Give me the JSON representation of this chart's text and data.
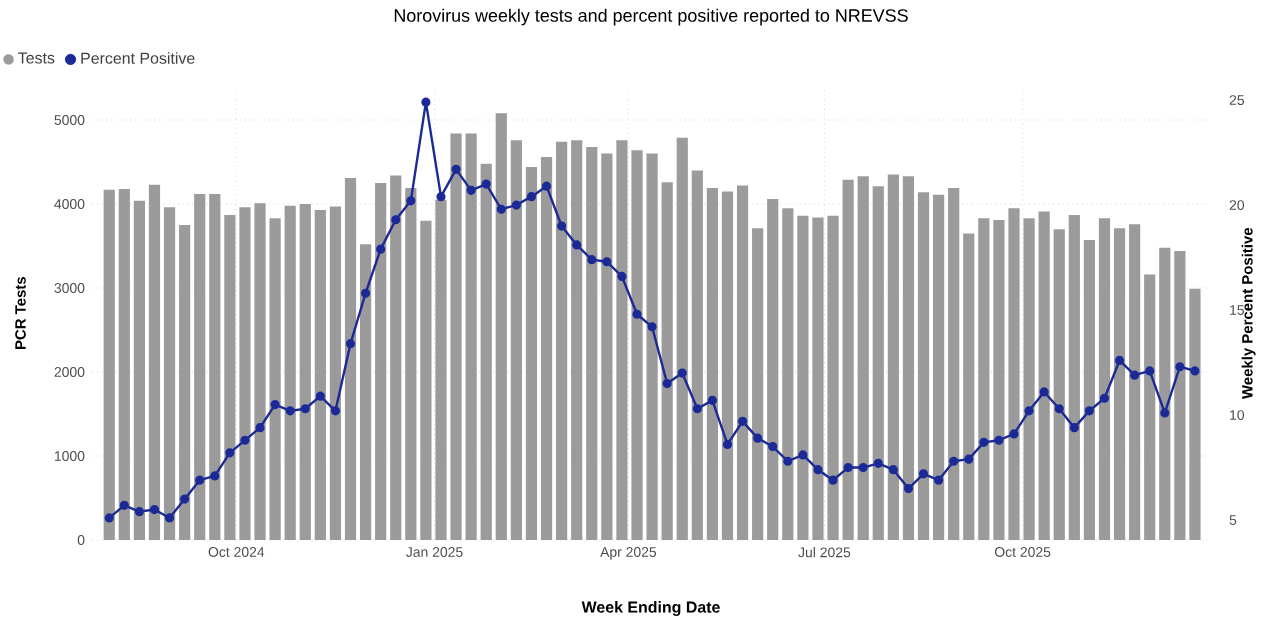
{
  "chart_data": {
    "type": "bar",
    "title": "Norovirus weekly tests and percent positive reported to NREVSS",
    "xlabel": "Week Ending Date",
    "ylabel": "PCR Tests",
    "y2label": "Weekly Percent Positive",
    "x": [
      "2024-08-03",
      "2024-08-10",
      "2024-08-17",
      "2024-08-24",
      "2024-08-31",
      "2024-09-07",
      "2024-09-14",
      "2024-09-21",
      "2024-09-28",
      "2024-10-05",
      "2024-10-12",
      "2024-10-19",
      "2024-10-26",
      "2024-11-02",
      "2024-11-09",
      "2024-11-16",
      "2024-11-23",
      "2024-11-30",
      "2024-12-07",
      "2024-12-14",
      "2024-12-21",
      "2024-12-28",
      "2025-01-04",
      "2025-01-11",
      "2025-01-18",
      "2025-01-25",
      "2025-02-01",
      "2025-02-08",
      "2025-02-15",
      "2025-02-22",
      "2025-03-01",
      "2025-03-08",
      "2025-03-15",
      "2025-03-22",
      "2025-03-29",
      "2025-04-05",
      "2025-04-12",
      "2025-04-19",
      "2025-04-26",
      "2025-05-03",
      "2025-05-10",
      "2025-05-17",
      "2025-05-24",
      "2025-05-31",
      "2025-06-07",
      "2025-06-14",
      "2025-06-21",
      "2025-06-28",
      "2025-07-05",
      "2025-07-12",
      "2025-07-19",
      "2025-07-26",
      "2025-08-02",
      "2025-08-09",
      "2025-08-16",
      "2025-08-23",
      "2025-08-30",
      "2025-09-06",
      "2025-09-13",
      "2025-09-20",
      "2025-09-27",
      "2025-10-04",
      "2025-10-11",
      "2025-10-18",
      "2025-10-25",
      "2025-11-01",
      "2025-11-08",
      "2025-11-15",
      "2025-11-22",
      "2025-11-29",
      "2025-12-06",
      "2025-12-13",
      "2025-12-20"
    ],
    "series": [
      {
        "name": "Tests",
        "color": "#9b9b9b",
        "values": [
          4170,
          4180,
          4040,
          4230,
          3960,
          3750,
          4120,
          4120,
          3870,
          3960,
          4010,
          3830,
          3980,
          4000,
          3930,
          3970,
          4310,
          3520,
          4250,
          4340,
          4190,
          3800,
          4050,
          4840,
          4840,
          4480,
          5080,
          4760,
          4440,
          4560,
          4740,
          4760,
          4680,
          4600,
          4760,
          4640,
          4600,
          4260,
          4790,
          4400,
          4190,
          4150,
          4220,
          3710,
          4060,
          3950,
          3860,
          3840,
          3860,
          4290,
          4330,
          4210,
          4350,
          4330,
          4140,
          4110,
          4190,
          3650,
          3830,
          3810,
          3950,
          3830,
          3910,
          3700,
          3870,
          3570,
          3830,
          3710,
          3760,
          3160,
          3480,
          3440,
          2990
        ]
      },
      {
        "name": "Percent Positive",
        "type": "line",
        "axis": "y2",
        "color": "#1b2a96",
        "values": [
          5.1,
          5.7,
          5.4,
          5.5,
          5.1,
          6.0,
          6.9,
          7.1,
          8.2,
          8.8,
          9.4,
          10.5,
          10.2,
          10.3,
          10.9,
          10.2,
          13.4,
          15.8,
          17.9,
          19.3,
          20.2,
          24.9,
          20.4,
          21.7,
          20.7,
          21.0,
          19.8,
          20.0,
          20.4,
          20.9,
          19.0,
          18.1,
          17.4,
          17.3,
          16.6,
          14.8,
          14.2,
          11.5,
          12.0,
          10.3,
          10.7,
          8.6,
          9.7,
          8.9,
          8.5,
          7.8,
          8.1,
          7.4,
          6.9,
          7.5,
          7.5,
          7.7,
          7.4,
          6.5,
          7.2,
          6.9,
          7.8,
          7.9,
          8.7,
          8.8,
          9.1,
          10.2,
          11.1,
          10.3,
          9.4,
          10.2,
          10.8,
          12.6,
          11.9,
          12.1,
          10.1,
          12.3,
          12.1
        ]
      }
    ],
    "xlim": [
      "2024-07-26",
      "2025-12-27"
    ],
    "xticks": [
      {
        "value": "2024-10-01",
        "label": "Oct 2024"
      },
      {
        "value": "2025-01-01",
        "label": "Jan 2025"
      },
      {
        "value": "2025-04-01",
        "label": "Apr 2025"
      },
      {
        "value": "2025-07-01",
        "label": "Jul 2025"
      },
      {
        "value": "2025-10-01",
        "label": "Oct 2025"
      }
    ],
    "ylim": [
      0,
      5400
    ],
    "yticks": [
      0,
      1000,
      2000,
      3000,
      4000,
      5000
    ],
    "y2lim": [
      4.05,
      25.65
    ],
    "y2ticks": [
      5,
      10,
      15,
      20,
      25
    ],
    "grid": true,
    "legend": "top left",
    "marker": "circle",
    "line_style": "solid"
  }
}
